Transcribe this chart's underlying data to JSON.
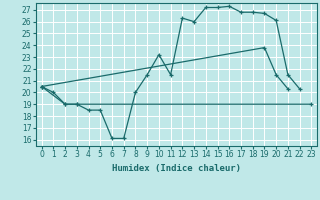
{
  "xlabel": "Humidex (Indice chaleur)",
  "bg_color": "#c0e8e8",
  "line_color": "#1a6b6b",
  "grid_color": "#ffffff",
  "xlim": [
    -0.5,
    23.5
  ],
  "ylim": [
    15.5,
    27.6
  ],
  "yticks": [
    16,
    17,
    18,
    19,
    20,
    21,
    22,
    23,
    24,
    25,
    26,
    27
  ],
  "xticks": [
    0,
    1,
    2,
    3,
    4,
    5,
    6,
    7,
    8,
    9,
    10,
    11,
    12,
    13,
    14,
    15,
    16,
    17,
    18,
    19,
    20,
    21,
    22,
    23
  ],
  "line1_x": [
    0,
    1,
    2,
    3,
    4,
    5,
    6,
    7,
    8,
    9,
    10,
    11,
    12,
    13,
    14,
    15,
    16,
    17,
    18,
    19,
    20,
    21,
    22
  ],
  "line1_y": [
    20.5,
    20.0,
    19.0,
    19.0,
    18.5,
    18.5,
    16.1,
    16.1,
    20.0,
    21.5,
    23.2,
    21.5,
    26.3,
    26.0,
    27.2,
    27.2,
    27.3,
    26.8,
    26.8,
    26.7,
    26.1,
    21.5,
    20.3
  ],
  "line2_x": [
    0,
    2,
    3,
    23
  ],
  "line2_y": [
    20.5,
    19.0,
    19.0,
    19.0
  ],
  "line3_x": [
    0,
    19,
    20,
    21
  ],
  "line3_y": [
    20.5,
    23.8,
    21.5,
    20.3
  ]
}
